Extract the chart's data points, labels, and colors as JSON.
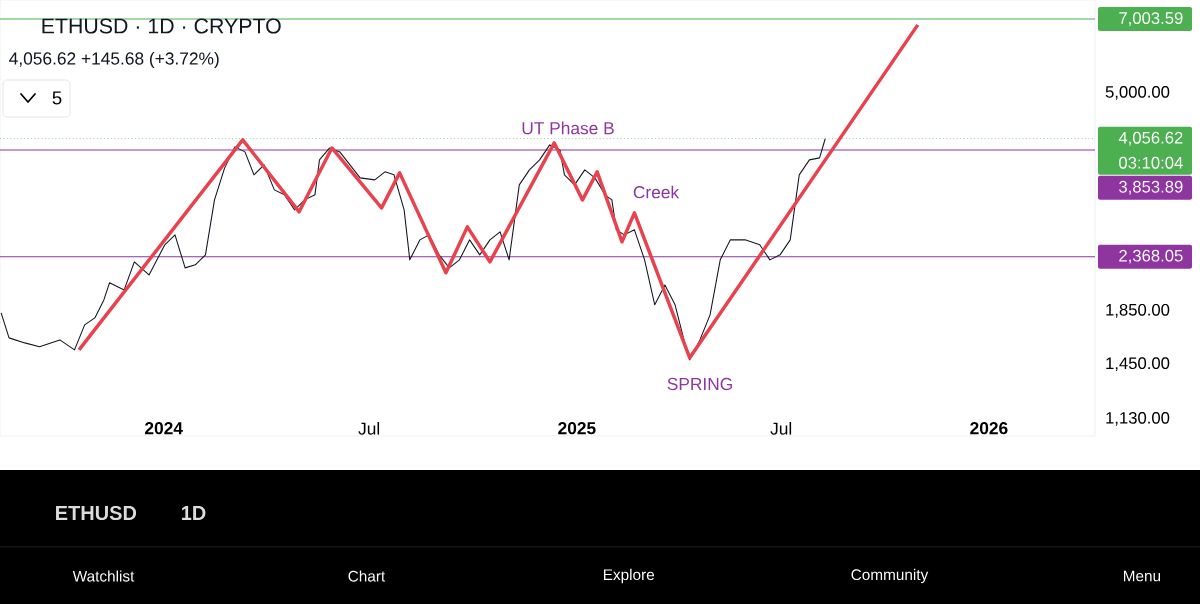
{
  "chart_data": {
    "type": "line",
    "title": "ETHUSD · 1D · CRYPTO",
    "subtitle": "4,056.62  +145.68 (+3.72%)",
    "xlim": [
      "2023-08-09",
      "2026-04-05"
    ],
    "ylim": [
      1045,
      7640
    ],
    "log": true,
    "xticks": [
      {
        "value": "2024-01-01",
        "label": "2024"
      },
      {
        "value": "2024-07-01",
        "label": "Jul"
      },
      {
        "value": "2025-01-01",
        "label": "2025"
      },
      {
        "value": "2025-07-01",
        "label": "Jul"
      },
      {
        "value": "2026-01-01",
        "label": "2026"
      }
    ],
    "yticks": [
      {
        "value": 1130,
        "label": "1,130.00"
      },
      {
        "value": 1450,
        "label": "1,450.00"
      },
      {
        "value": 1850,
        "label": "1,850.00"
      },
      {
        "value": 5000,
        "label": "5,000.00"
      }
    ],
    "grid": false,
    "marker": "none",
    "series": [
      {
        "color": "#131722",
        "x": [
          "2023-08-10",
          "2023-08-17",
          "2023-08-31",
          "2023-09-13",
          "2023-10-01",
          "2023-10-14",
          "2023-10-23",
          "2023-11-01",
          "2023-11-09",
          "2023-11-14",
          "2023-11-27",
          "2023-12-06",
          "2023-12-19",
          "2024-01-02",
          "2024-01-11",
          "2024-01-20",
          "2024-01-29",
          "2024-02-07",
          "2024-02-15",
          "2024-02-24",
          "2024-03-04",
          "2024-03-13",
          "2024-03-21",
          "2024-03-30",
          "2024-04-08",
          "2024-04-17",
          "2024-04-26",
          "2024-05-05",
          "2024-05-14",
          "2024-05-18",
          "2024-05-27",
          "2024-06-05",
          "2024-06-14",
          "2024-06-23",
          "2024-07-06",
          "2024-07-15",
          "2024-07-23",
          "2024-08-01",
          "2024-08-06",
          "2024-08-15",
          "2024-08-23",
          "2024-09-01",
          "2024-09-10",
          "2024-09-19",
          "2024-09-28",
          "2024-10-07",
          "2024-10-16",
          "2024-10-25",
          "2024-11-02",
          "2024-11-11",
          "2024-11-20",
          "2024-11-29",
          "2024-12-08",
          "2024-12-17",
          "2024-12-21",
          "2024-12-30",
          "2025-01-08",
          "2025-01-17",
          "2025-01-26",
          "2025-02-01",
          "2025-02-05",
          "2025-02-12",
          "2025-02-21",
          "2025-03-02",
          "2025-03-11",
          "2025-03-20",
          "2025-03-29",
          "2025-04-07",
          "2025-04-11",
          "2025-04-20",
          "2025-04-29",
          "2025-05-08",
          "2025-05-17",
          "2025-05-30",
          "2025-06-12",
          "2025-06-21",
          "2025-06-30",
          "2025-07-09",
          "2025-07-17",
          "2025-07-26",
          "2025-08-04",
          "2025-08-09"
        ],
        "values": [
          1833,
          1635,
          1598,
          1570,
          1620,
          1548,
          1735,
          1791,
          1944,
          2102,
          2035,
          2313,
          2179,
          2500,
          2616,
          2250,
          2282,
          2388,
          3069,
          3551,
          3908,
          3820,
          3440,
          3600,
          3212,
          3140,
          2932,
          3069,
          3140,
          3683,
          3890,
          3820,
          3600,
          3393,
          3362,
          3487,
          3440,
          2932,
          2334,
          2557,
          2616,
          2388,
          2250,
          2334,
          2557,
          2388,
          2557,
          2652,
          2334,
          3286,
          3519,
          3683,
          3944,
          3855,
          3440,
          3286,
          3519,
          3393,
          3140,
          3069,
          2677,
          2616,
          2677,
          2334,
          1901,
          2082,
          1901,
          1584,
          1479,
          1620,
          1816,
          2334,
          2557,
          2557,
          2500,
          2334,
          2388,
          2557,
          3440,
          3683,
          3717,
          4056
        ]
      },
      {
        "color": "#e8424f",
        "x": [
          "2023-10-18",
          "2024-03-11",
          "2024-04-30",
          "2024-05-29",
          "2024-07-12",
          "2024-07-28",
          "2024-09-07",
          "2024-09-26",
          "2024-10-16",
          "2024-12-12",
          "2025-01-06",
          "2025-01-19",
          "2025-02-10",
          "2025-02-21",
          "2025-04-11",
          "2025-10-30"
        ],
        "values": [
          1548,
          4035,
          2906,
          3890,
          2959,
          3471,
          2200,
          2713,
          2313,
          3980,
          3069,
          3487,
          2534,
          2892,
          1493,
          6819
        ]
      }
    ],
    "ref_lines": [
      {
        "axis": "y",
        "value": 7003.59,
        "label": "7,003.59",
        "color": "#4caf50"
      },
      {
        "axis": "y",
        "value": 4056.62,
        "label": "4,056.62",
        "color": "#4caf50",
        "line_style": "dotted"
      },
      {
        "axis": "y",
        "value": 3853.89,
        "label": "3,853.89",
        "color": "#8e35a0"
      },
      {
        "axis": "y",
        "value": 2368.05,
        "label": "2,368.05",
        "color": "#8e35a0"
      }
    ],
    "annotations": [
      "UT Phase B",
      "Creek",
      "SPRING",
      "5",
      "03:10:04",
      "ETHUSD",
      "1D",
      "Watchlist",
      "Chart",
      "Explore",
      "Community",
      "Menu"
    ]
  }
}
